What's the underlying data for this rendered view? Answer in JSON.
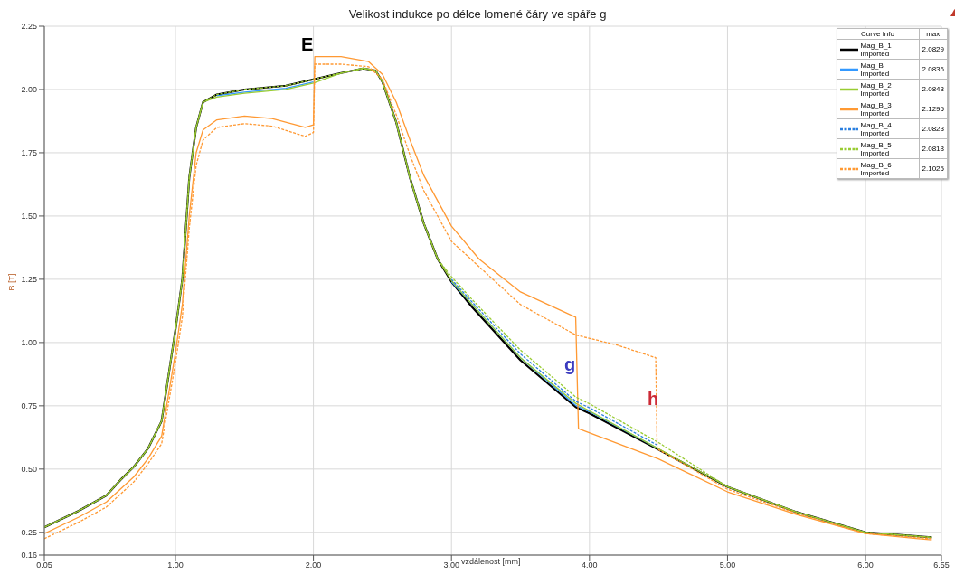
{
  "chart_data": {
    "type": "line",
    "title": "Velikost indukce po délce lomené čáry ve spáře g",
    "xlabel": "vzdálenost [mm]",
    "ylabel": "B [T]",
    "legend_title": "Curve Info",
    "legend": "top right",
    "grid": true,
    "marker": "none",
    "xlim": [
      0.05,
      6.55
    ],
    "xticks": [
      0.05,
      {
        "value": 1,
        "label": "1.00"
      },
      {
        "value": 2,
        "label": "2.00"
      },
      {
        "value": 3,
        "label": "3.00"
      },
      {
        "value": 4,
        "label": "4.00"
      },
      {
        "value": 5,
        "label": "5.00"
      },
      {
        "value": 6,
        "label": "6.00"
      },
      6.55
    ],
    "ylim": [
      0.16,
      2.25
    ],
    "yticks": [
      0.16,
      0.25,
      {
        "value": 0.5,
        "label": "0.50"
      },
      0.75,
      {
        "value": 1,
        "label": "1.00"
      },
      1.25,
      {
        "value": 1.5,
        "label": "1.50"
      },
      1.75,
      {
        "value": 2,
        "label": "2.00"
      },
      2.25
    ],
    "series": [
      {
        "name": "Mag_B_1 Imported",
        "color": "#000000",
        "line_style": "solid",
        "x": [
          0.05,
          0.3,
          0.5,
          0.6,
          0.7,
          0.8,
          0.9,
          1.0,
          1.05,
          1.1,
          1.15,
          1.2,
          1.3,
          1.5,
          1.8,
          2.0,
          2.2,
          2.36,
          2.45,
          2.5,
          2.6,
          2.7,
          2.8,
          2.9,
          3.0,
          3.15,
          3.5,
          3.9,
          4.0,
          4.5,
          5.0,
          5.5,
          6.0,
          6.48
        ],
        "values": [
          0.27,
          0.335,
          0.396,
          0.456,
          0.51,
          0.58,
          0.69,
          1.05,
          1.25,
          1.65,
          1.85,
          1.95,
          1.98,
          2.0,
          2.015,
          2.04,
          2.065,
          2.083,
          2.075,
          2.03,
          1.87,
          1.65,
          1.47,
          1.33,
          1.24,
          1.14,
          0.93,
          0.745,
          0.72,
          0.577,
          0.43,
          0.33,
          0.25,
          0.23
        ]
      },
      {
        "name": "Mag_B Imported",
        "color": "#3399ff",
        "line_style": "solid",
        "x": [
          1.3,
          1.5,
          1.8,
          2.0,
          2.5,
          3.0,
          3.15,
          3.5,
          3.9,
          4.0,
          4.5
        ],
        "values": [
          1.975,
          1.99,
          2.005,
          2.03,
          null,
          1.24,
          1.15,
          0.94,
          0.752,
          0.727,
          0.58
        ]
      },
      {
        "name": "Mag_B_2 Imported",
        "color": "#99cc33",
        "line_style": "solid",
        "x": [
          0.05,
          0.3,
          0.5,
          0.6,
          0.7,
          0.8,
          0.9,
          1.0,
          1.05,
          1.1,
          1.15,
          1.2,
          1.3,
          1.5,
          1.8,
          2.0,
          2.2,
          2.36,
          2.45,
          2.5,
          2.6,
          2.7,
          2.8,
          2.9,
          3.0,
          3.15,
          3.5,
          3.9,
          4.0,
          4.5,
          5.0,
          5.5,
          6.0,
          6.48
        ],
        "values": [
          0.27,
          0.335,
          0.396,
          0.456,
          0.51,
          0.58,
          0.69,
          1.05,
          1.25,
          1.65,
          1.85,
          1.95,
          1.97,
          1.985,
          2.0,
          2.025,
          2.065,
          2.084,
          2.075,
          2.03,
          1.87,
          1.65,
          1.47,
          1.33,
          1.245,
          1.15,
          0.94,
          0.76,
          0.73,
          0.58,
          0.43,
          0.33,
          0.25,
          0.23
        ]
      },
      {
        "name": "Mag_B_3 Imported",
        "color": "#ff9933",
        "line_style": "solid",
        "x": [
          0.05,
          0.3,
          0.5,
          0.6,
          0.7,
          0.8,
          0.9,
          1.0,
          1.05,
          1.1,
          1.15,
          1.2,
          1.3,
          1.5,
          1.7,
          1.94,
          2.0,
          2.01,
          2.2,
          2.4,
          2.5,
          2.6,
          2.7,
          2.8,
          3.0,
          3.2,
          3.5,
          3.9,
          3.92,
          4.5,
          5.0,
          5.5,
          6.0,
          6.48
        ],
        "values": [
          0.245,
          0.31,
          0.37,
          0.42,
          0.47,
          0.54,
          0.63,
          0.96,
          1.15,
          1.5,
          1.75,
          1.84,
          1.88,
          1.895,
          1.885,
          1.85,
          1.86,
          2.13,
          2.13,
          2.11,
          2.06,
          1.95,
          1.8,
          1.66,
          1.46,
          1.33,
          1.2,
          1.1,
          0.66,
          0.54,
          0.41,
          0.32,
          0.245,
          0.22
        ]
      },
      {
        "name": "Mag_B_4 Imported",
        "color": "#2a7fe0",
        "line_style": "dashed",
        "x": [
          3.0,
          3.15,
          3.5,
          3.9,
          4.0,
          4.5
        ],
        "values": [
          1.25,
          1.16,
          0.955,
          0.768,
          0.742,
          0.592
        ]
      },
      {
        "name": "Mag_B_5 Imported",
        "color": "#99cc33",
        "line_style": "dashed",
        "x": [
          0.05,
          0.3,
          0.5,
          0.6,
          0.7,
          0.8,
          0.9,
          1.0,
          1.05,
          1.1,
          1.15,
          1.2,
          1.3,
          1.5,
          1.8,
          2.0,
          2.2,
          2.36,
          2.45,
          2.5,
          2.6,
          2.7,
          2.8,
          2.9,
          3.0,
          3.15,
          3.5,
          3.9,
          4.0,
          4.5,
          5.0,
          5.5,
          6.0,
          6.48
        ],
        "values": [
          0.27,
          0.335,
          0.396,
          0.456,
          0.51,
          0.58,
          0.69,
          1.05,
          1.25,
          1.65,
          1.85,
          1.95,
          1.98,
          2.0,
          2.015,
          2.04,
          2.065,
          2.082,
          2.075,
          2.03,
          1.87,
          1.65,
          1.47,
          1.33,
          1.26,
          1.17,
          0.97,
          0.785,
          0.758,
          0.605,
          0.43,
          0.33,
          0.25,
          0.23
        ]
      },
      {
        "name": "Mag_B_6 Imported",
        "color": "#ff9933",
        "line_style": "dashed",
        "x": [
          0.05,
          0.3,
          0.5,
          0.6,
          0.7,
          0.8,
          0.9,
          1.0,
          1.05,
          1.1,
          1.15,
          1.2,
          1.3,
          1.5,
          1.7,
          1.94,
          2.0,
          2.01,
          2.2,
          2.4,
          2.5,
          2.6,
          2.7,
          2.8,
          3.0,
          3.5,
          3.9,
          4.2,
          4.48,
          4.49,
          5.0,
          5.5,
          6.0,
          6.48
        ],
        "values": [
          0.225,
          0.29,
          0.35,
          0.4,
          0.45,
          0.52,
          0.6,
          0.92,
          1.1,
          1.45,
          1.7,
          1.8,
          1.85,
          1.865,
          1.855,
          1.815,
          1.83,
          2.1,
          2.1,
          2.09,
          2.04,
          1.9,
          1.74,
          1.6,
          1.4,
          1.15,
          1.03,
          0.99,
          0.94,
          0.58,
          0.42,
          0.325,
          0.245,
          0.225
        ]
      }
    ],
    "annotations": [
      "E",
      "g",
      "h",
      "max",
      "2.0829",
      "2.0836",
      "2.0843",
      "2.1295",
      "2.0823",
      "2.0818",
      "2.1025"
    ]
  }
}
